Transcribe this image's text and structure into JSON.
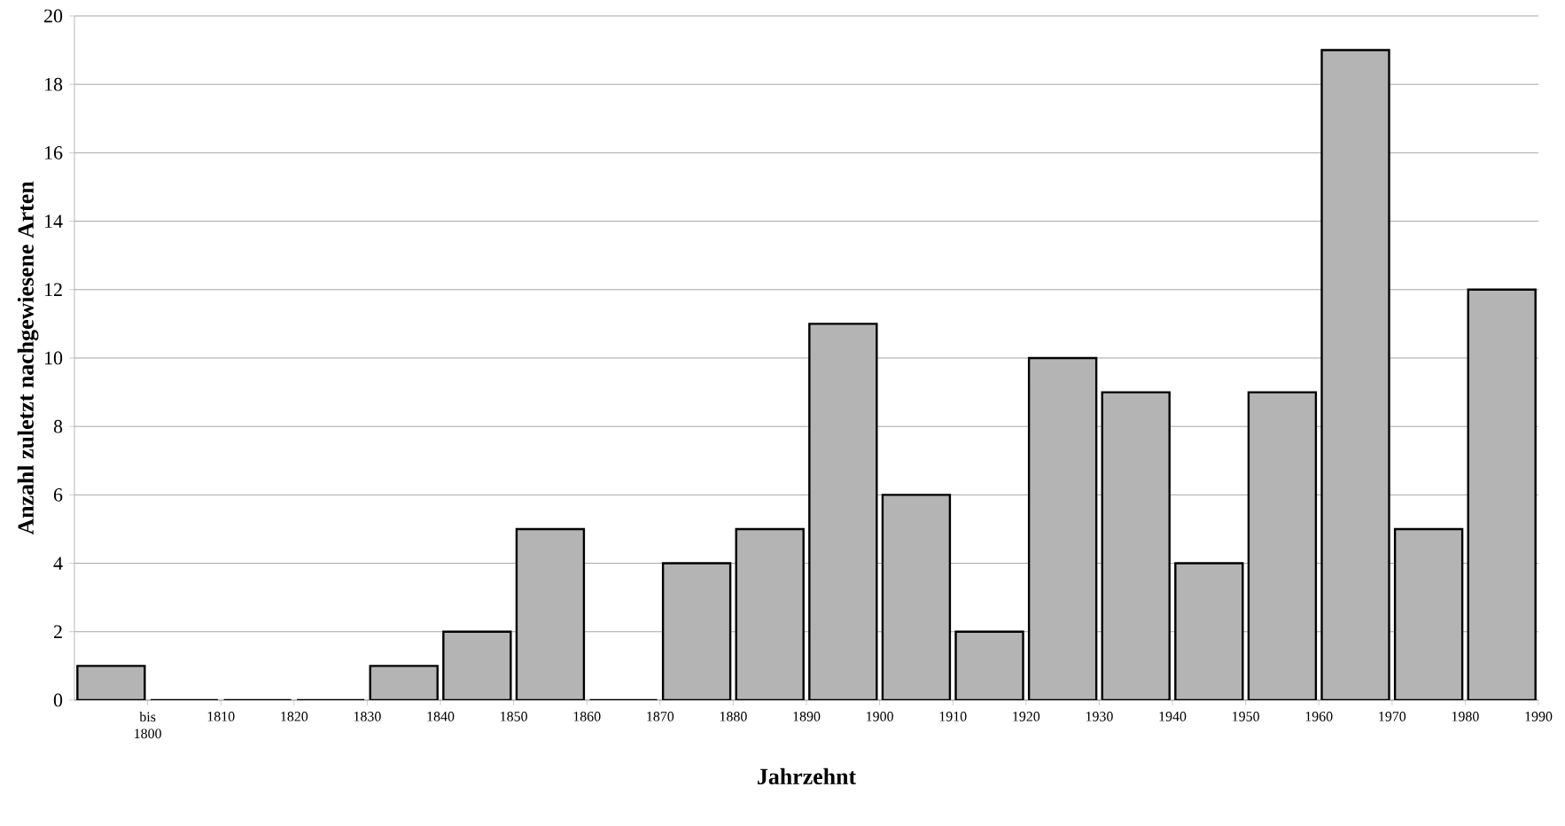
{
  "chart_data": {
    "type": "bar",
    "xlabel": "Jahrzehnt",
    "ylabel": "Anzahl zuletzt nachgewiesene Arten",
    "categories": [
      "bis 1800",
      "1810",
      "1820",
      "1830",
      "1840",
      "1850",
      "1860",
      "1870",
      "1880",
      "1890",
      "1900",
      "1910",
      "1920",
      "1930",
      "1940",
      "1950",
      "1960",
      "1970",
      "1980",
      "1990"
    ],
    "values": [
      1,
      0,
      0,
      0,
      1,
      2,
      5,
      0,
      4,
      5,
      11,
      6,
      2,
      10,
      9,
      4,
      9,
      19,
      5,
      12
    ],
    "color": "#b4b4b4",
    "ylim": [
      0,
      20
    ],
    "yticks": [
      0,
      2,
      4,
      6,
      8,
      10,
      12,
      14,
      16,
      18,
      20
    ],
    "grid": "y"
  }
}
